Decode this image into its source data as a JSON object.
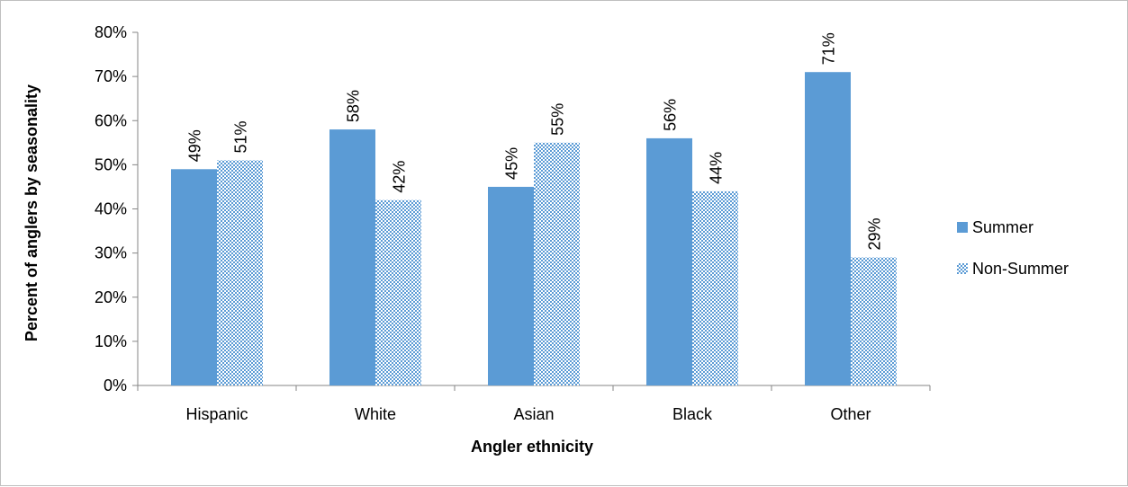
{
  "chart_data": {
    "type": "bar",
    "categories": [
      "Hispanic",
      "White",
      "Asian",
      "Black",
      "Other"
    ],
    "series": [
      {
        "name": "Summer",
        "values": [
          49,
          58,
          45,
          56,
          71
        ],
        "labels": [
          "49%",
          "58%",
          "45%",
          "56%",
          "71%"
        ],
        "color": "#5b9bd5",
        "fill": "solid"
      },
      {
        "name": "Non-Summer",
        "values": [
          51,
          42,
          55,
          44,
          29
        ],
        "labels": [
          "51%",
          "42%",
          "55%",
          "44%",
          "29%"
        ],
        "color": "#5b9bd5",
        "fill": "checkered"
      }
    ],
    "xlabel": "Angler ethnicity",
    "ylabel": "Percent of anglers by seasonality",
    "ylim": [
      0,
      80
    ],
    "yticks": [
      "0%",
      "10%",
      "20%",
      "30%",
      "40%",
      "50%",
      "60%",
      "70%",
      "80%"
    ],
    "grid": false,
    "legend_position": "right"
  }
}
